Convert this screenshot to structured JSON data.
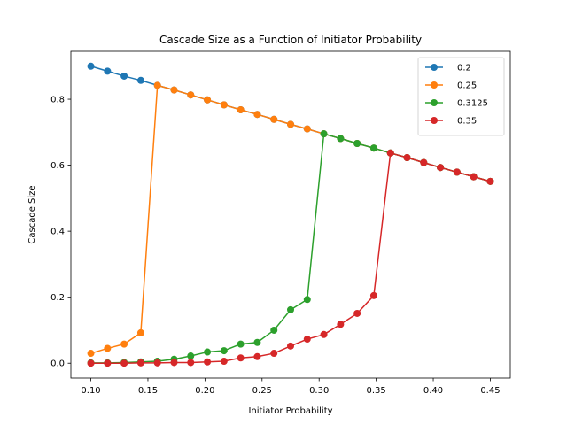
{
  "chart_data": {
    "type": "line",
    "title": "Cascade Size as a Function of Initiator Probability",
    "xlabel": "Initiator Probability",
    "ylabel": "Cascade Size",
    "xlim": [
      0.0825,
      0.4675
    ],
    "ylim": [
      -0.045,
      0.945
    ],
    "xticks": [
      "0.10",
      "0.15",
      "0.20",
      "0.25",
      "0.30",
      "0.35",
      "0.40",
      "0.45"
    ],
    "yticks": [
      "0.0",
      "0.2",
      "0.4",
      "0.6",
      "0.8"
    ],
    "grid": false,
    "legend": "top-right",
    "x": [
      0.1,
      0.1145833,
      0.1291667,
      0.14375,
      0.1583333,
      0.1729167,
      0.1875,
      0.2020833,
      0.2166667,
      0.23125,
      0.2458333,
      0.2604167,
      0.275,
      0.2895833,
      0.3041667,
      0.31875,
      0.3333333,
      0.3479167,
      0.3625,
      0.3770833,
      0.3916667,
      0.40625,
      0.4208333,
      0.4354167,
      0.45
    ],
    "series": [
      {
        "name": "0.2",
        "color": "#1f77b4",
        "values": [
          0.9,
          0.885,
          0.87,
          0.857,
          0.842,
          0.828,
          0.813,
          0.798,
          0.783,
          0.768,
          0.754,
          0.739,
          0.724,
          0.71,
          0.695,
          0.681,
          0.666,
          0.652,
          0.637,
          0.623,
          0.608,
          0.593,
          0.579,
          0.565,
          0.551
        ]
      },
      {
        "name": "0.25",
        "color": "#ff7f0e",
        "values": [
          0.03,
          0.045,
          0.058,
          0.092,
          0.842,
          0.828,
          0.813,
          0.798,
          0.783,
          0.768,
          0.754,
          0.739,
          0.724,
          0.71,
          0.695,
          0.681,
          0.666,
          0.652,
          0.637,
          0.623,
          0.608,
          0.593,
          0.579,
          0.565,
          0.551
        ]
      },
      {
        "name": "0.3125",
        "color": "#2ca02c",
        "values": [
          0.001,
          0.001,
          0.002,
          0.004,
          0.006,
          0.012,
          0.022,
          0.034,
          0.038,
          0.058,
          0.063,
          0.1,
          0.162,
          0.193,
          0.695,
          0.681,
          0.666,
          0.652,
          0.637,
          0.623,
          0.608,
          0.593,
          0.579,
          0.565,
          0.551
        ]
      },
      {
        "name": "0.35",
        "color": "#d62728",
        "values": [
          0.0,
          0.0,
          0.0,
          0.001,
          0.001,
          0.002,
          0.002,
          0.004,
          0.006,
          0.016,
          0.02,
          0.03,
          0.052,
          0.073,
          0.087,
          0.118,
          0.151,
          0.205,
          0.637,
          0.623,
          0.608,
          0.593,
          0.579,
          0.565,
          0.551
        ]
      }
    ]
  }
}
